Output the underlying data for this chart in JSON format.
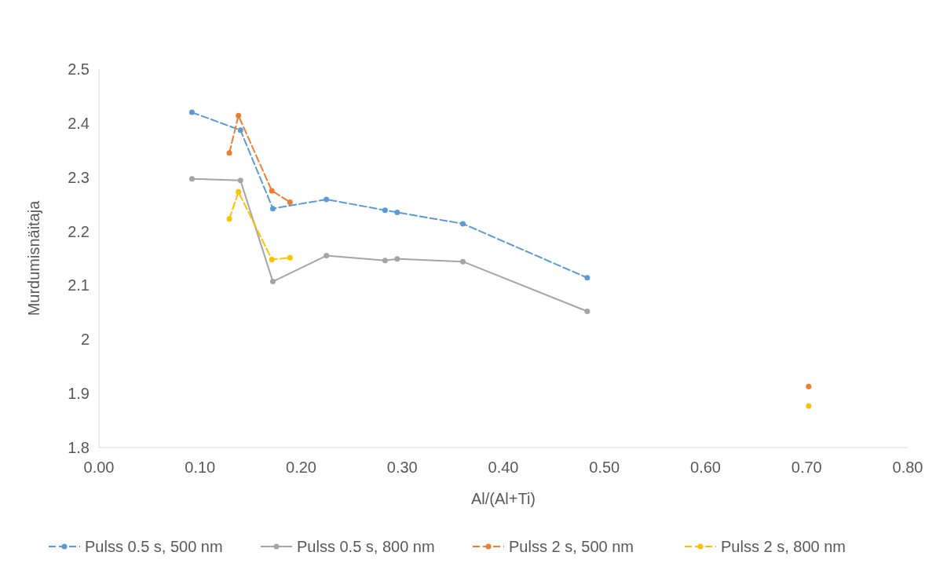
{
  "chart_data": {
    "type": "line",
    "xlabel": "Al/(Al+Ti)",
    "ylabel": "Murdumisnäitaja",
    "xlim": [
      0,
      0.8
    ],
    "xticks": [
      {
        "value": 0,
        "label": "0.00"
      },
      {
        "value": 0.1,
        "label": "0.10"
      },
      {
        "value": 0.2,
        "label": "0.20"
      },
      {
        "value": 0.3,
        "label": "0.30"
      },
      {
        "value": 0.4,
        "label": "0.40"
      },
      {
        "value": 0.5,
        "label": "0.50"
      },
      {
        "value": 0.6,
        "label": "0.60"
      },
      {
        "value": 0.7,
        "label": "0.70"
      },
      {
        "value": 0.8,
        "label": "0.80"
      }
    ],
    "ylim": [
      1.8,
      2.5
    ],
    "yticks": [
      1.8,
      1.9,
      2,
      2.1,
      2.2,
      2.3,
      2.4,
      2.5
    ],
    "grid": false,
    "legend": "bottom",
    "marker": "circle",
    "series": [
      {
        "name": "Pulss 0.5 s, 500 nm",
        "color": "#5b9bd5",
        "line_style": "dashed",
        "x": [
          0.092,
          0.14,
          0.172,
          0.225,
          0.283,
          0.295,
          0.36,
          0.483
        ],
        "values": [
          2.42,
          2.387,
          2.242,
          2.259,
          2.239,
          2.235,
          2.214,
          2.114
        ]
      },
      {
        "name": "Pulss 0.5 s, 800 nm",
        "color": "#a5a5a5",
        "line_style": "solid",
        "x": [
          0.092,
          0.14,
          0.172,
          0.225,
          0.283,
          0.295,
          0.36,
          0.483
        ],
        "values": [
          2.297,
          2.294,
          2.107,
          2.155,
          2.146,
          2.149,
          2.144,
          2.052
        ]
      },
      {
        "name": "Pulss 2 s, 500 nm",
        "color": "#ed7d31",
        "line_style": "dashed",
        "x": [
          0.129,
          0.138,
          0.171,
          0.189,
          0.45,
          0.702
        ],
        "values": [
          2.345,
          2.414,
          2.275,
          2.254,
          null,
          1.913
        ]
      },
      {
        "name": "Pulss 2 s, 800 nm",
        "color": "#ffc000",
        "line_style": "dashed",
        "x": [
          0.129,
          0.138,
          0.171,
          0.189,
          0.45,
          0.702
        ],
        "values": [
          2.223,
          2.273,
          2.148,
          2.151,
          null,
          1.877
        ]
      }
    ]
  }
}
